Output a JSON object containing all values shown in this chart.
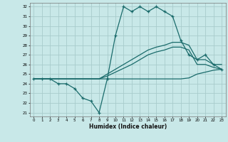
{
  "xlabel": "Humidex (Indice chaleur)",
  "bg_color": "#c8e8e8",
  "grid_color": "#a8cccc",
  "line_color": "#1a6b6b",
  "hours": [
    0,
    1,
    2,
    3,
    4,
    5,
    6,
    7,
    8,
    9,
    10,
    11,
    12,
    13,
    14,
    15,
    16,
    17,
    18,
    19,
    20,
    21,
    22,
    23
  ],
  "main_line": [
    24.5,
    24.5,
    24.5,
    24.0,
    24.0,
    23.5,
    22.5,
    22.2,
    21.0,
    24.5,
    29.0,
    32.0,
    31.5,
    32.0,
    31.5,
    32.0,
    31.5,
    31.0,
    28.5,
    27.0,
    26.5,
    27.0,
    26.0,
    25.5
  ],
  "line_a": [
    24.5,
    24.5,
    24.5,
    24.5,
    24.5,
    24.5,
    24.5,
    24.5,
    24.5,
    25.0,
    25.5,
    26.0,
    26.5,
    27.0,
    27.5,
    27.8,
    28.0,
    28.3,
    28.3,
    28.0,
    26.5,
    26.5,
    26.0,
    26.0
  ],
  "line_b": [
    24.5,
    24.5,
    24.5,
    24.5,
    24.5,
    24.5,
    24.5,
    24.5,
    24.5,
    24.8,
    25.2,
    25.6,
    26.0,
    26.5,
    27.0,
    27.3,
    27.5,
    27.8,
    27.8,
    27.5,
    26.0,
    26.0,
    25.7,
    25.5
  ],
  "line_c": [
    24.5,
    24.5,
    24.5,
    24.5,
    24.5,
    24.5,
    24.5,
    24.5,
    24.5,
    24.5,
    24.5,
    24.5,
    24.5,
    24.5,
    24.5,
    24.5,
    24.5,
    24.5,
    24.5,
    24.6,
    25.0,
    25.2,
    25.4,
    25.5
  ],
  "yticks": [
    21,
    22,
    23,
    24,
    25,
    26,
    27,
    28,
    29,
    30,
    31,
    32
  ],
  "xticks": [
    0,
    1,
    2,
    3,
    4,
    5,
    6,
    7,
    8,
    9,
    10,
    11,
    12,
    13,
    14,
    15,
    16,
    17,
    18,
    19,
    20,
    21,
    22,
    23
  ],
  "ylim": [
    20.6,
    32.4
  ],
  "xlim": [
    -0.5,
    23.5
  ]
}
